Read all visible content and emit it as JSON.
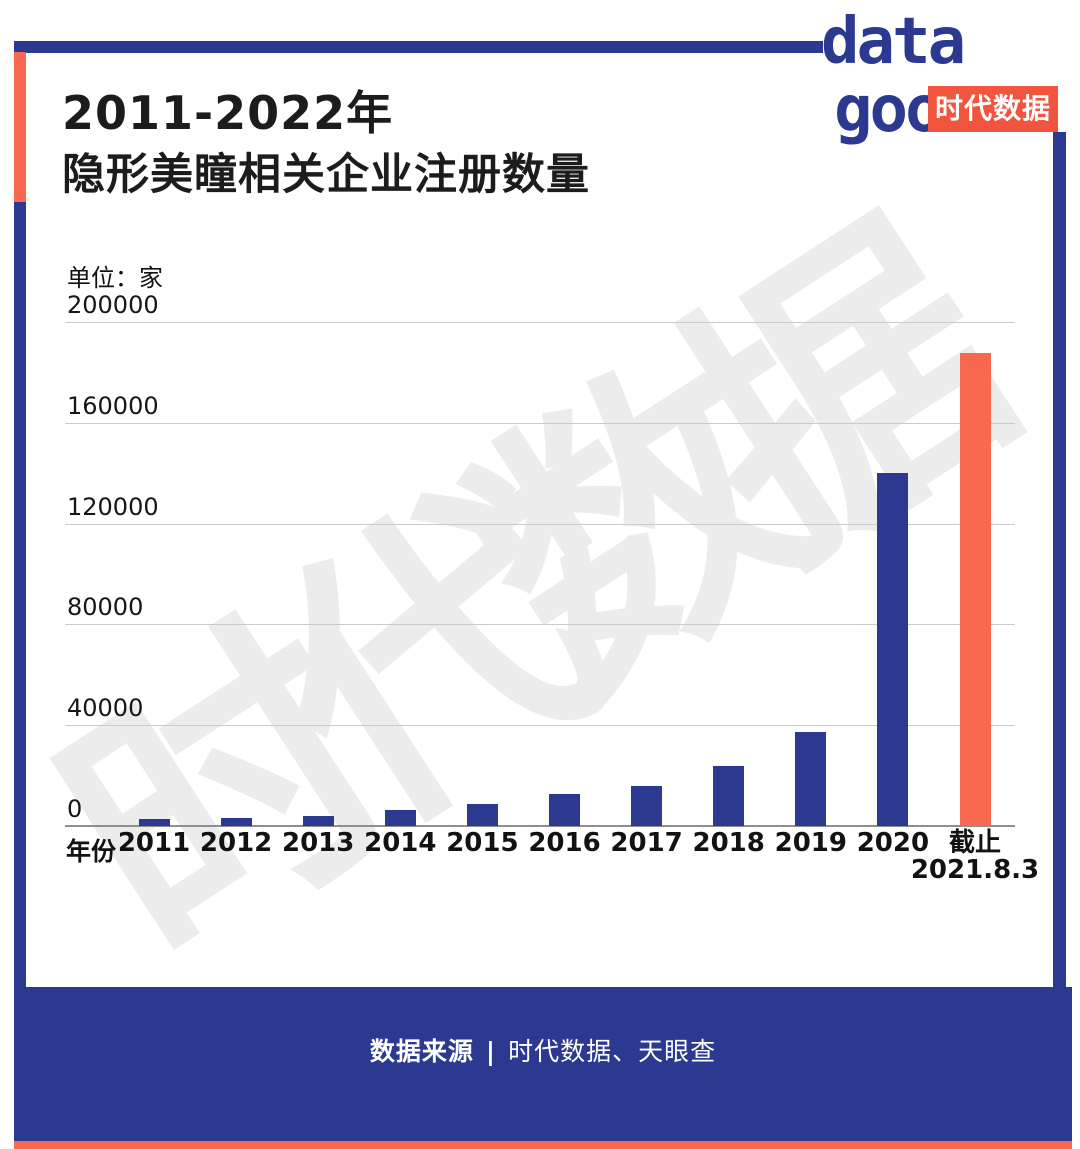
{
  "colors": {
    "blue": "#2b3990",
    "coral": "#f9694f",
    "badge": "#f2553d"
  },
  "brand": {
    "logo_line1": "data",
    "logo_line2": "goo",
    "badge_text": "时代数据"
  },
  "title": {
    "line1": "2011-2022年",
    "line2": "隐形美瞳相关企业注册数量"
  },
  "watermark": {
    "text": "时代数据"
  },
  "chart_data": {
    "type": "bar",
    "title": "2011-2022年隐形美瞳相关企业注册数量",
    "unit_label": "单位：家",
    "xlabel": "年份",
    "ylabel": "",
    "ylim": [
      0,
      200000
    ],
    "yticks": [
      200000,
      160000,
      120000,
      80000,
      40000,
      0
    ],
    "grid": true,
    "legend": false,
    "categories": [
      "2011",
      "2012",
      "2013",
      "2014",
      "2015",
      "2016",
      "2017",
      "2018",
      "2019",
      "2020",
      "截止\n2021.8.3"
    ],
    "values": [
      2800,
      3100,
      4000,
      6500,
      8800,
      12600,
      15800,
      24000,
      37300,
      140000,
      187700
    ],
    "highlight_index": 10
  },
  "footer": {
    "source_label": "数据来源",
    "divider": "|",
    "sources": "时代数据、天眼查"
  }
}
